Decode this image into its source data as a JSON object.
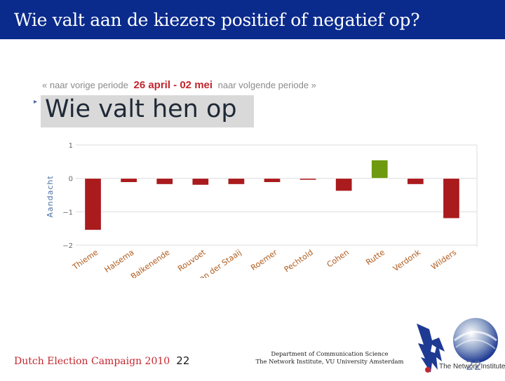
{
  "slide": {
    "title": "Wie valt aan de kiezers positief of negatief op?"
  },
  "nav": {
    "prev": "« naar vorige periode",
    "current": "26 april - 02 mei",
    "next": "naar volgende periode »"
  },
  "chart_data": {
    "type": "bar",
    "title": "Wie valt hen op",
    "ylabel": "Aandacht",
    "xlabel": "",
    "ylim": [
      -2,
      1
    ],
    "yticks": [
      1,
      0,
      -1,
      -2
    ],
    "ytick_labels": [
      "1",
      "0",
      "−1",
      "−2"
    ],
    "grid": true,
    "categories": [
      "Thieme",
      "Halsema",
      "Balkenende",
      "Rouvoet",
      "van der Staaij",
      "Roemer",
      "Pechtold",
      "Cohen",
      "Rutte",
      "Verdonk",
      "Wilders"
    ],
    "values": [
      -1.55,
      -0.12,
      -0.18,
      -0.2,
      -0.18,
      -0.12,
      -0.05,
      -0.38,
      0.55,
      -0.18,
      -1.2
    ],
    "colors": {
      "negative": "#aa1b1d",
      "positive": "#6e9a10",
      "grid": "#dddddd",
      "axis_text": "#666666",
      "ylabel": "#4a6fa5"
    }
  },
  "footer": {
    "campaign": "Dutch Election Campaign 2010",
    "page": "22",
    "dept_line1": "Department of Communication Science",
    "dept_line2": "The Network Institute,  VU University Amsterdam",
    "logo_text": "The Network Institute"
  }
}
